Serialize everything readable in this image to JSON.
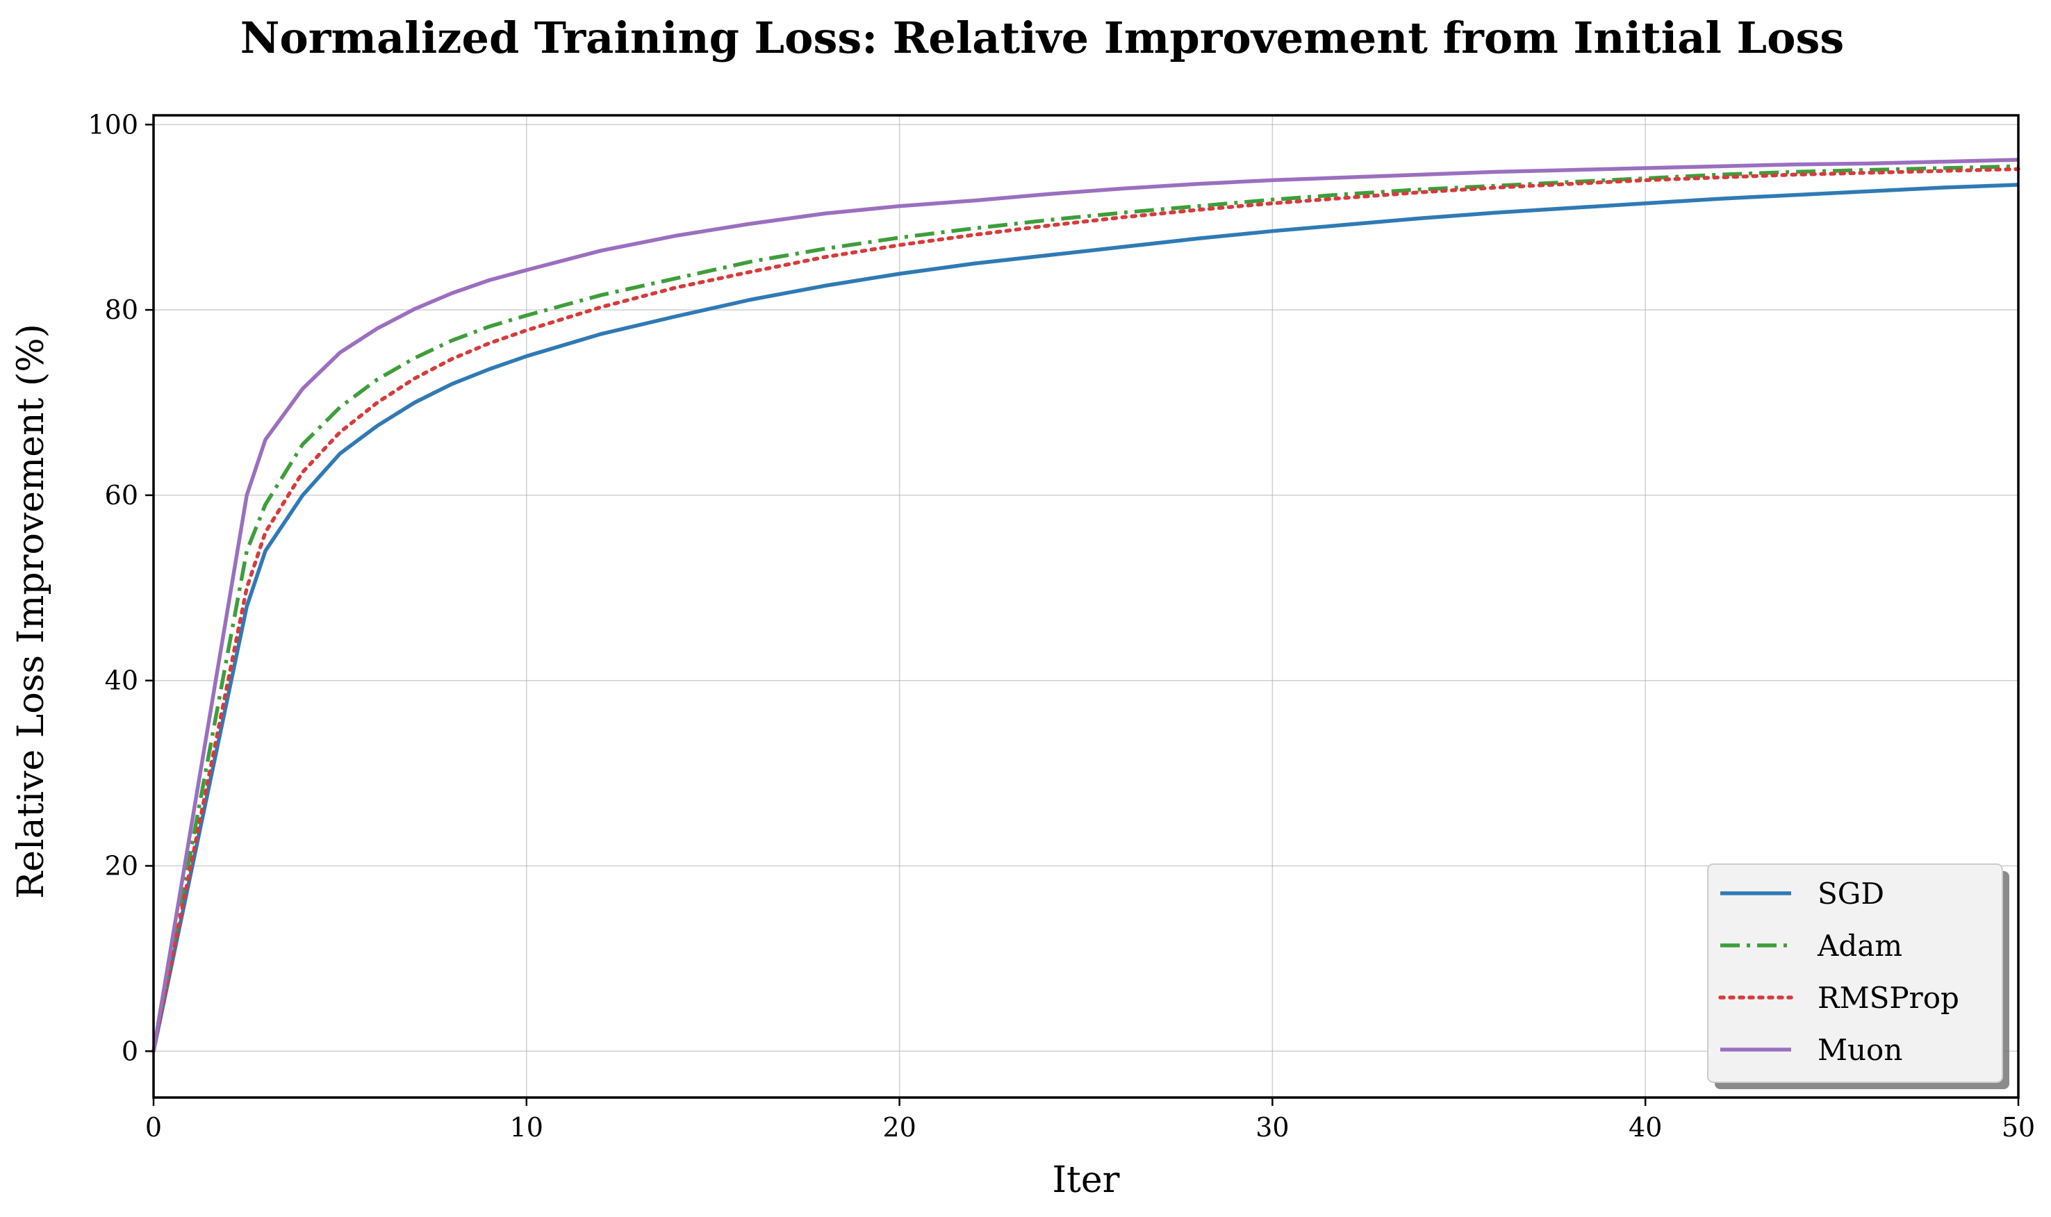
{
  "chart_data": {
    "type": "line",
    "title": "Normalized Training Loss: Relative Improvement from Initial Loss",
    "xlabel": "Iter",
    "ylabel": "Relative Loss Improvement (%)",
    "xlim": [
      0,
      50
    ],
    "ylim": [
      -5,
      101
    ],
    "xticks": [
      0,
      10,
      20,
      30,
      40,
      50
    ],
    "yticks": [
      0,
      20,
      40,
      60,
      80,
      100
    ],
    "grid": true,
    "legend_position": "lower-right",
    "series": [
      {
        "name": "SGD",
        "color": "#2f7ab5",
        "style": "solid",
        "x": [
          0,
          2.5,
          3,
          4,
          5,
          6,
          7,
          8,
          9,
          10,
          12,
          14,
          16,
          18,
          20,
          22,
          24,
          26,
          28,
          30,
          32,
          34,
          36,
          38,
          40,
          42,
          44,
          46,
          48,
          50
        ],
        "y": [
          0,
          48,
          54,
          60,
          64.5,
          67.5,
          70,
          72,
          73.6,
          75,
          77.4,
          79.3,
          81.1,
          82.6,
          83.9,
          85,
          85.9,
          86.8,
          87.7,
          88.5,
          89.2,
          89.9,
          90.5,
          91,
          91.5,
          92,
          92.4,
          92.8,
          93.2,
          93.5
        ]
      },
      {
        "name": "Adam",
        "color": "#3d9e3a",
        "style": "dashdot",
        "x": [
          0,
          2.5,
          3,
          4,
          5,
          6,
          7,
          8,
          9,
          10,
          12,
          14,
          16,
          18,
          20,
          22,
          24,
          26,
          28,
          30,
          32,
          34,
          36,
          38,
          40,
          42,
          44,
          46,
          48,
          50
        ],
        "y": [
          0,
          54,
          59,
          65.5,
          69.5,
          72.5,
          74.8,
          76.7,
          78.2,
          79.4,
          81.6,
          83.4,
          85.2,
          86.6,
          87.8,
          88.8,
          89.7,
          90.5,
          91.2,
          91.9,
          92.5,
          93,
          93.4,
          93.8,
          94.2,
          94.6,
          94.9,
          95.1,
          95.3,
          95.5
        ]
      },
      {
        "name": "RMSProp",
        "color": "#d63b3b",
        "style": "dotted",
        "x": [
          0,
          2.5,
          3,
          4,
          5,
          6,
          7,
          8,
          9,
          10,
          12,
          14,
          16,
          18,
          20,
          22,
          24,
          26,
          28,
          30,
          32,
          34,
          36,
          38,
          40,
          42,
          44,
          46,
          48,
          50
        ],
        "y": [
          0,
          50,
          56,
          62.5,
          66.8,
          70,
          72.6,
          74.7,
          76.4,
          77.8,
          80.3,
          82.4,
          84.1,
          85.7,
          87,
          88.1,
          89.1,
          90,
          90.8,
          91.5,
          92.1,
          92.7,
          93.2,
          93.6,
          94,
          94.3,
          94.6,
          94.8,
          95,
          95.2
        ]
      },
      {
        "name": "Muon",
        "color": "#9b6fbf",
        "style": "solid",
        "x": [
          0,
          2.5,
          3,
          4,
          5,
          6,
          7,
          8,
          9,
          10,
          12,
          14,
          16,
          18,
          20,
          22,
          24,
          26,
          28,
          30,
          32,
          34,
          36,
          38,
          40,
          42,
          44,
          46,
          48,
          50
        ],
        "y": [
          0,
          60,
          66,
          71.5,
          75.4,
          78,
          80.1,
          81.8,
          83.2,
          84.3,
          86.4,
          88,
          89.3,
          90.4,
          91.2,
          91.8,
          92.5,
          93.1,
          93.6,
          94,
          94.3,
          94.6,
          94.9,
          95.1,
          95.3,
          95.5,
          95.7,
          95.8,
          96,
          96.2
        ]
      }
    ]
  }
}
